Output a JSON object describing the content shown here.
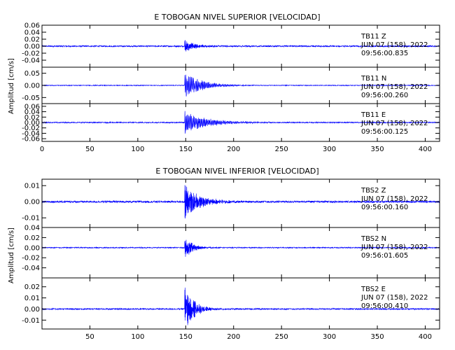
{
  "figure": {
    "background": "#ffffff",
    "axis_color": "#000000",
    "trace_color": "#0000ff"
  },
  "chart_data": [
    {
      "type": "line",
      "title": "E TOBOGAN NIVEL SUPERIOR [VELOCIDAD]",
      "ylabel": "Amplitud [cm/s]",
      "xlim": [
        0,
        415
      ],
      "xticks": [
        0,
        50,
        100,
        150,
        200,
        250,
        300,
        350,
        400
      ],
      "xtick_labels": [
        "0",
        "50",
        "100",
        "150",
        "200",
        "250",
        "300",
        "350",
        "400"
      ],
      "panels": [
        {
          "station": "TB11",
          "component": "Z",
          "date": "JUN 07 (158), 2022",
          "time": "09:56:00.835",
          "ylim": [
            -0.06,
            0.06
          ],
          "yticks": [
            0.06,
            0.04,
            0.02,
            0.0,
            -0.02,
            -0.04
          ],
          "ytick_labels": [
            "0.06",
            "0.04",
            "0.02",
            "0.00",
            "-0.02",
            "-0.04"
          ],
          "onset": 149,
          "peak": 0.018,
          "noise": 0.002,
          "decay_s": 12,
          "period_s": 0.5
        },
        {
          "station": "TB11",
          "component": "N",
          "date": "JUN 07 (158), 2022",
          "time": "09:56:00.260",
          "ylim": [
            -0.075,
            0.075
          ],
          "yticks": [
            0.05,
            0.0,
            -0.05
          ],
          "ytick_labels": [
            "0.05",
            "0.00",
            "-0.05"
          ],
          "onset": 149,
          "peak": 0.055,
          "noise": 0.0015,
          "decay_s": 18,
          "period_s": 1.0
        },
        {
          "station": "TB11",
          "component": "E",
          "date": "JUN 07 (158), 2022",
          "time": "09:56:00.125",
          "ylim": [
            -0.07,
            0.07
          ],
          "yticks": [
            0.06,
            0.04,
            0.02,
            0.0,
            -0.02,
            -0.04,
            -0.06
          ],
          "ytick_labels": [
            "0.06",
            "0.04",
            "0.02",
            "0.00",
            "-0.02",
            "-0.04",
            "-0.06"
          ],
          "onset": 149,
          "peak": 0.045,
          "noise": 0.002,
          "decay_s": 22,
          "period_s": 1.0
        }
      ]
    },
    {
      "type": "line",
      "title": "E TOBOGAN NIVEL INFERIOR [VELOCIDAD]",
      "ylabel": "Amplitud [cm/s]",
      "xlim": [
        0,
        415
      ],
      "xticks": [
        50,
        100,
        150,
        200,
        250,
        300,
        350,
        400
      ],
      "xtick_labels": [
        "50",
        "100",
        "150",
        "200",
        "250",
        "300",
        "350",
        "400"
      ],
      "panels": [
        {
          "station": "TBS2",
          "component": "Z",
          "date": "JUN 07 (158), 2022",
          "time": "09:56:00.160",
          "ylim": [
            -0.016,
            0.014
          ],
          "yticks": [
            0.01,
            0.0,
            -0.01
          ],
          "ytick_labels": [
            "0.01",
            "0.00",
            "-0.01"
          ],
          "onset": 149,
          "peak": 0.012,
          "noise": 0.0006,
          "decay_s": 15,
          "period_s": 0.4
        },
        {
          "station": "TBS2",
          "component": "N",
          "date": "JUN 07 (158), 2022",
          "time": "09:56:01.605",
          "ylim": [
            -0.06,
            0.04
          ],
          "yticks": [
            0.04,
            0.02,
            0.0,
            -0.02,
            -0.04
          ],
          "ytick_labels": [
            "0.04",
            "0.02",
            "0.00",
            "-0.02",
            "-0.04"
          ],
          "onset": 149,
          "peak": 0.025,
          "noise": 0.001,
          "decay_s": 8,
          "period_s": 0.3
        },
        {
          "station": "TBS2",
          "component": "E",
          "date": "JUN 07 (158), 2022",
          "time": "09:56:00.410",
          "ylim": [
            -0.018,
            0.028
          ],
          "yticks": [
            0.02,
            0.01,
            0.0,
            -0.01
          ],
          "ytick_labels": [
            "0.02",
            "0.01",
            "0.00",
            "-0.01"
          ],
          "onset": 149,
          "peak": 0.022,
          "noise": 0.0006,
          "decay_s": 10,
          "period_s": 0.4
        }
      ]
    }
  ]
}
